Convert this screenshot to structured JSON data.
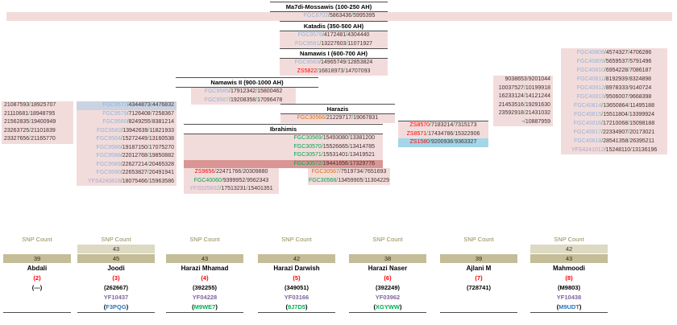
{
  "colors": {
    "pink": "#F2DCDB",
    "rose": "#D99694",
    "bluegrey": "#C9D3E2",
    "cyan": "#A3D6E8",
    "snp_blue": "#95B3D7",
    "snp_red": "#FF0000",
    "snp_green": "#00A551",
    "snp_orange": "#E36C09",
    "snp_lavender": "#B2A2C7",
    "slash": "#3FA45B",
    "number": "#433031",
    "tan_light": "#DDD9C3",
    "tan_dark": "#C4BD97",
    "label_olive": "#948A54",
    "purple": "#8064A2",
    "code_blue": "#2E75B6",
    "code_green": "#00B050",
    "accent_red": "#FF0000",
    "line": "#4D4D4D"
  },
  "headers": {
    "gen1": "Ma7di-Mossawis (100-250 AH)",
    "gen2": "Katadis (350-500 AH)",
    "gen3": "Namawis I (600-700 AH)",
    "gen4": "Namawis II (900-1000 AH)",
    "harazis": "Harazis",
    "ibrahimis": "Ibrahimis"
  },
  "tree": {
    "gen1": [
      {
        "snp": "FGC8702",
        "sc": "blue",
        "nums": [
          "5863436",
          "5995395"
        ]
      }
    ],
    "gen2": [
      {
        "snp": "FGC9578",
        "sc": "blue",
        "nums": [
          "4172481",
          "4304440"
        ]
      },
      {
        "snp": "FGC9581",
        "sc": "blue",
        "nums": [
          "13227603",
          "11071927"
        ]
      }
    ],
    "gen3": [
      {
        "snp": "FGC9583",
        "sc": "blue",
        "nums": [
          "14965749",
          "12853824"
        ]
      },
      {
        "snp": "ZS5822",
        "sc": "red",
        "nums": [
          "16818973",
          "14707093"
        ]
      }
    ],
    "gen4": [
      {
        "snp": "FGC9585",
        "sc": "blue",
        "nums": [
          "17912342",
          "15800462"
        ]
      },
      {
        "snp": "FGC9587",
        "sc": "blue",
        "nums": [
          "19208358",
          "17096478"
        ]
      }
    ],
    "harazis": [
      {
        "snp": "FGC30566",
        "sc": "orange",
        "nums": [
          "21229717",
          "19067831"
        ]
      }
    ],
    "ibrahimis": [
      {
        "snp": "FGC30569",
        "sc": "green",
        "nums": [
          "15493080",
          "13381200"
        ]
      },
      {
        "snp": "FGC30570",
        "sc": "green",
        "nums": [
          "15526665",
          "13414785"
        ]
      },
      {
        "snp": "FGC30571",
        "sc": "green",
        "nums": [
          "15531401",
          "13419521"
        ]
      },
      {
        "snp": "FGC30572",
        "sc": "green",
        "nums": [
          "19441656",
          "17329776"
        ],
        "bg": "rose"
      }
    ],
    "ibrahimis_sub": [
      {
        "snp": "ZS9656",
        "sc": "red",
        "nums": [
          "22471766",
          "20309880"
        ]
      },
      {
        "snp": "FGC40060",
        "sc": "green",
        "nums": [
          "9399952",
          "9562343"
        ]
      },
      {
        "snp": "YFS525602",
        "sc": "lav",
        "nums": [
          "17513231",
          "15401351"
        ]
      }
    ],
    "harazis_sub": [
      {
        "snp": "FGC30567",
        "sc": "orange",
        "nums": [
          "7519734",
          "7651693"
        ]
      },
      {
        "snp": "FGC30568",
        "sc": "green",
        "nums": [
          "13459905",
          "11304229"
        ]
      }
    ],
    "zs_block": [
      {
        "snp": "ZS8570",
        "sc": "red",
        "nums": [
          "7183214",
          "7315173"
        ]
      },
      {
        "snp": "ZS8571",
        "sc": "red",
        "nums": [
          "17434786",
          "15322906"
        ]
      },
      {
        "snp": "ZS1580",
        "sc": "red",
        "nums": [
          "9200936",
          "9363327"
        ],
        "bg": "cyan"
      }
    ],
    "left_col1": [
      {
        "nums": [
          "21087593",
          "18925707"
        ]
      },
      {
        "nums": [
          "21110681",
          "18948795"
        ]
      },
      {
        "nums": [
          "21562835",
          "19400949"
        ]
      },
      {
        "nums": [
          "23263725",
          "21101839"
        ]
      },
      {
        "nums": [
          "23327656",
          "21165770"
        ]
      }
    ],
    "left_col2": [
      {
        "snp": "FGC9577",
        "sc": "blue",
        "nums": [
          "4344873",
          "4476832"
        ],
        "bg": "bluegrey"
      },
      {
        "snp": "FGC9579",
        "sc": "blue",
        "nums": [
          "7126408",
          "7258367"
        ]
      },
      {
        "snp": "FGC9580",
        "sc": "blue",
        "nums": [
          "8249255",
          "8381214"
        ]
      },
      {
        "snp": "FGC9582",
        "sc": "blue",
        "nums": [
          "13942639",
          "11821933"
        ]
      },
      {
        "snp": "FGC9584",
        "sc": "blue",
        "nums": [
          "15272449",
          "13160538"
        ]
      },
      {
        "snp": "FGC9586",
        "sc": "blue",
        "nums": [
          "19187150",
          "17075270"
        ]
      },
      {
        "snp": "FGC9588",
        "sc": "blue",
        "nums": [
          "22012768",
          "19850882"
        ]
      },
      {
        "snp": "FGC9589",
        "sc": "blue",
        "nums": [
          "22627214",
          "20465328"
        ]
      },
      {
        "snp": "FGC9590",
        "sc": "blue",
        "nums": [
          "22653827",
          "20491941"
        ]
      },
      {
        "snp": "YFS4240818",
        "sc": "lav",
        "nums": [
          "18075466",
          "15963586"
        ]
      }
    ],
    "mid_col": [
      {
        "nums": [
          "9038653",
          "9201044"
        ]
      },
      {
        "nums": [
          "10037527",
          "10199918"
        ]
      },
      {
        "nums": [
          "16233124",
          "14121244"
        ]
      },
      {
        "nums": [
          "21453516",
          "19291630"
        ]
      },
      {
        "nums": [
          "23592918",
          "21431032"
        ]
      },
      {
        "nums": [
          "-",
          "10887959"
        ]
      }
    ],
    "right_col": [
      {
        "snp": "FGC40808",
        "sc": "blue",
        "nums": [
          "4574327",
          "4706286"
        ]
      },
      {
        "snp": "FGC40809",
        "sc": "blue",
        "nums": [
          "5659537",
          "5791496"
        ]
      },
      {
        "snp": "FGC40810",
        "sc": "blue",
        "nums": [
          "6954228",
          "7086187"
        ]
      },
      {
        "snp": "FGC40811",
        "sc": "blue",
        "nums": [
          "8192939",
          "8324898"
        ]
      },
      {
        "snp": "FGC40812",
        "sc": "blue",
        "nums": [
          "8978333",
          "9140724"
        ]
      },
      {
        "snp": "FGC40813",
        "sc": "blue",
        "nums": [
          "9506007",
          "9668398"
        ]
      },
      {
        "snp": "FGC40814",
        "sc": "blue",
        "nums": [
          "13650864",
          "11495188"
        ]
      },
      {
        "snp": "FGC40815",
        "sc": "blue",
        "nums": [
          "15511804",
          "13399924"
        ]
      },
      {
        "snp": "FGC40816",
        "sc": "blue",
        "nums": [
          "17210068",
          "15098188"
        ]
      },
      {
        "snp": "FGC40817",
        "sc": "blue",
        "nums": [
          "22334907",
          "20173021"
        ]
      },
      {
        "snp": "FGC40818",
        "sc": "blue",
        "nums": [
          "28541358",
          "26395211"
        ]
      },
      {
        "snp": "YFS4241012",
        "sc": "lav",
        "nums": [
          "15248110",
          "13136196"
        ]
      }
    ]
  },
  "cards": [
    {
      "count_label": "SNP Count",
      "bar_top": null,
      "bar_main": "39",
      "name": "Abdali",
      "order": "(2)",
      "kit": "(---)",
      "yf": null,
      "code": null,
      "code_color": null
    },
    {
      "count_label": "SNP Count",
      "bar_top": "43",
      "bar_main": "45",
      "name": "Joodi",
      "order": "(3)",
      "kit": "(262667)",
      "yf": "YF10437",
      "code": "F3PQG",
      "code_color": "blue"
    },
    {
      "count_label": "SNP Count",
      "bar_top": null,
      "bar_main": "43",
      "name": "Harazi Mhamad",
      "order": "(4)",
      "kit": "(392255)",
      "yf": "YF04228",
      "code": "M9WE7",
      "code_color": "green"
    },
    {
      "count_label": "SNP Count",
      "bar_top": null,
      "bar_main": "42",
      "name": "Harazi Darwish",
      "order": "(5)",
      "kit": "(349051)",
      "yf": "YF03166",
      "code": "9J7D5",
      "code_color": "green"
    },
    {
      "count_label": "SNP Count",
      "bar_top": null,
      "bar_main": "38",
      "name": "Harazi Naser",
      "order": "(6)",
      "kit": "(392249)",
      "yf": "YF03962",
      "code": "XGYWW",
      "code_color": "green"
    },
    {
      "count_label": "SNP Count",
      "bar_top": null,
      "bar_main": "39",
      "name": "Ajlani M",
      "order": "(7)",
      "kit": "(728741)",
      "yf": null,
      "code": null,
      "code_color": null
    },
    {
      "count_label": "SNP Count",
      "bar_top": "42",
      "bar_main": "43",
      "name": "Mahmoodi",
      "order": "(8)",
      "kit": "(M9803)",
      "yf": "YF10438",
      "code": "M9UDT",
      "code_color": "blue"
    }
  ]
}
